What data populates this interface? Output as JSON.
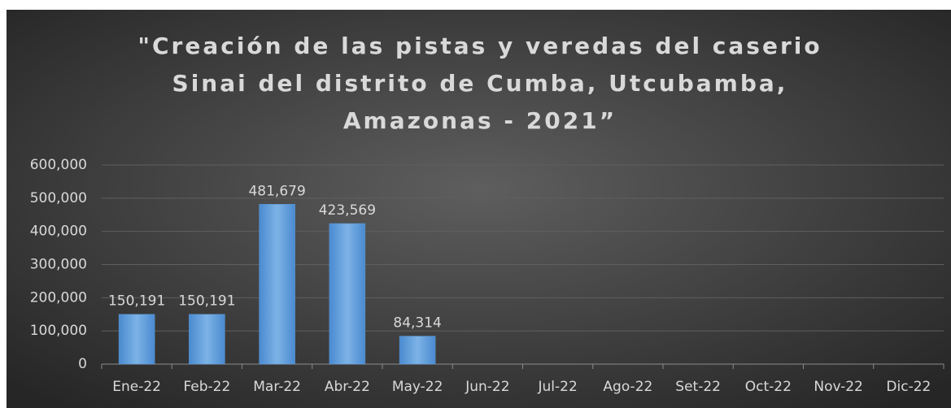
{
  "chart_data": {
    "type": "bar",
    "title": "\"Creación de las pistas y veredas del caserio Sinai del distrito de Cumba, Utcubamba, Amazonas - 2021”",
    "categories": [
      "Ene-22",
      "Feb-22",
      "Mar-22",
      "Abr-22",
      "May-22",
      "Jun-22",
      "Jul-22",
      "Ago-22",
      "Set-22",
      "Oct-22",
      "Nov-22",
      "Dic-22"
    ],
    "values": [
      150191,
      150191,
      481679,
      423569,
      84314,
      null,
      null,
      null,
      null,
      null,
      null,
      null
    ],
    "value_labels": [
      "150,191",
      "150,191",
      "481,679",
      "423,569",
      "84,314",
      null,
      null,
      null,
      null,
      null,
      null,
      null
    ],
    "color": "#5b9bd5",
    "ylim": [
      0,
      600000
    ],
    "yticks": [
      0,
      {
        "value": 100000,
        "label": "100,000"
      },
      {
        "value": 200000,
        "label": "200,000"
      },
      {
        "value": 300000,
        "label": "300,000"
      },
      {
        "value": 400000,
        "label": "400,000"
      },
      {
        "value": 500000,
        "label": "500,000"
      },
      {
        "value": 600000,
        "label": "600,000"
      }
    ],
    "grid": true
  }
}
